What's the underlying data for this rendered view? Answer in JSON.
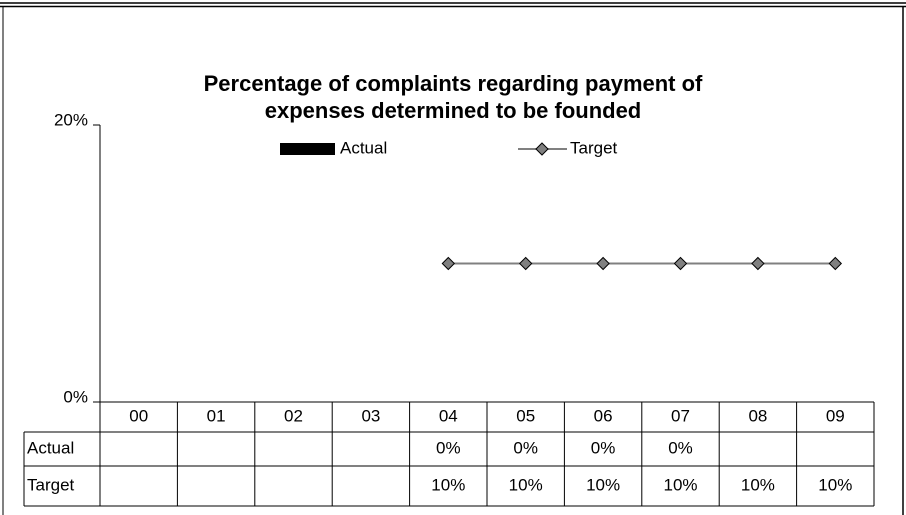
{
  "chart_data": {
    "type": "bar",
    "title": "Percentage of complaints regarding payment of expenses determined to be founded",
    "categories": [
      "00",
      "01",
      "02",
      "03",
      "04",
      "05",
      "06",
      "07",
      "08",
      "09"
    ],
    "series": [
      {
        "name": "Actual",
        "type": "bar",
        "color": "#000000",
        "values": [
          null,
          null,
          null,
          null,
          0,
          0,
          0,
          0,
          null,
          null
        ],
        "value_labels": [
          null,
          null,
          null,
          null,
          "0%",
          "0%",
          "0%",
          "0%",
          null,
          null
        ]
      },
      {
        "name": "Target",
        "type": "line",
        "color": "#808080",
        "values": [
          null,
          null,
          null,
          null,
          10,
          10,
          10,
          10,
          10,
          10
        ],
        "value_labels": [
          null,
          null,
          null,
          null,
          "10%",
          "10%",
          "10%",
          "10%",
          "10%",
          "10%"
        ]
      }
    ],
    "ylim": [
      0,
      20
    ],
    "yticks": [
      {
        "value": 0,
        "label": "0%"
      },
      {
        "value": 20,
        "label": "20%"
      }
    ],
    "legend": "top"
  }
}
